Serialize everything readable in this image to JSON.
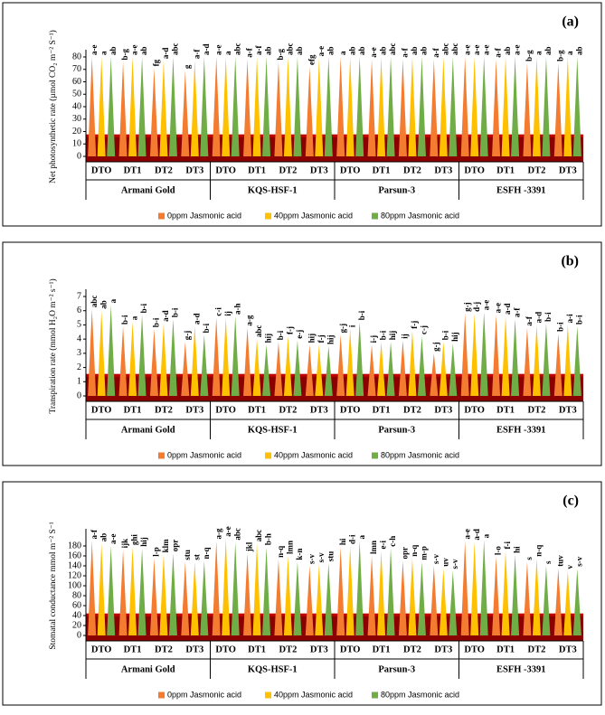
{
  "chart_data": [
    {
      "type": "bar",
      "panel": "(a)",
      "y_label": "Net photosynthetic rate (µmol CO₂ m⁻² S⁻¹)",
      "groups": [
        "Armani Gold",
        "KQS-HSF-1",
        "Parsun-3",
        "ESFH -3391"
      ],
      "categories": [
        "DTO",
        "DT1",
        "DT2",
        "DT3",
        "DTO",
        "DT1",
        "DT2",
        "DT3",
        "DTO",
        "DT1",
        "DT2",
        "DT3",
        "DTO",
        "DT1",
        "DT2",
        "DT3"
      ],
      "ylim": [
        0,
        80
      ],
      "yticks": [
        0,
        10,
        20,
        30,
        40,
        50,
        60,
        70,
        80
      ],
      "series": [
        {
          "name": "0ppm Jasmonic acid",
          "color": "#f47c30",
          "values": [
            80,
            76,
            71,
            69,
            80,
            78,
            76,
            72,
            80,
            78,
            78,
            78,
            80,
            78,
            75,
            75
          ],
          "labels": [
            "a-e",
            "b-g",
            "fg",
            "g",
            "a-e",
            "a-f",
            "b-g",
            "efg",
            "a",
            "a-e",
            "a-f",
            "a-f",
            "a-e",
            "a-f",
            "b-g",
            "b-g"
          ]
        },
        {
          "name": "40ppm Jasmonic acid",
          "color": "#ffc000",
          "values": [
            80,
            80,
            77,
            77,
            80,
            80,
            80,
            79,
            80,
            80,
            80,
            80,
            80,
            80,
            80,
            80
          ],
          "labels": [
            "a",
            "a-e",
            "a-d",
            "a-f",
            "a",
            "a-f",
            "abc",
            "a-e",
            "ab",
            "ab",
            "ab",
            "abc",
            "a-e",
            "ab",
            "a",
            "a"
          ]
        },
        {
          "name": "80ppm Jasmonic acid",
          "color": "#70ad47",
          "values": [
            80,
            80,
            80,
            80,
            80,
            80,
            80,
            80,
            80,
            80,
            80,
            80,
            80,
            80,
            80,
            80
          ],
          "labels": [
            "ab",
            "ab",
            "abc",
            "a-d",
            "abc",
            "ab",
            "ab",
            "ab",
            "ab",
            "abc",
            "ab",
            "abc",
            "a-e",
            "a-e",
            "ab",
            "ab"
          ]
        }
      ]
    },
    {
      "type": "bar",
      "panel": "(b)",
      "y_label": "Transpiration rate (mmol H₂O m⁻² s⁻¹)",
      "groups": [
        "Armani Gold",
        "KQS-HSF-1",
        "Parsun-3",
        "ESFH -3391"
      ],
      "categories": [
        "DTO",
        "DT1",
        "DT2",
        "DT3",
        "DTO",
        "DT1",
        "DT2",
        "DT3",
        "DTO",
        "DT1",
        "DT2",
        "DT3",
        "DTO",
        "DT1",
        "DT2",
        "DT3"
      ],
      "ylim": [
        0,
        7
      ],
      "yticks": [
        0,
        1,
        2,
        3,
        4,
        5,
        6,
        7
      ],
      "series": [
        {
          "name": "0ppm Jasmonic acid",
          "color": "#f47c30",
          "values": [
            6.1,
            4.9,
            4.7,
            3.8,
            5.5,
            4.8,
            3.8,
            3.6,
            4.3,
            3.6,
            3.9,
            3.0,
            5.8,
            5.7,
            4.8,
            4.4
          ],
          "labels": [
            "abc",
            "b-i",
            "b-i",
            "g-j",
            "c-i",
            "a-g",
            "b-i",
            "hij",
            "g-j",
            "i-j",
            "ij",
            "g-j",
            "g-j",
            "a-e",
            "a-f",
            "b-i"
          ]
        },
        {
          "name": "40ppm Jasmonic acid",
          "color": "#ffc000",
          "values": [
            6.0,
            5.2,
            5.1,
            4.9,
            5.5,
            4.0,
            4.2,
            3.6,
            4.7,
            3.8,
            4.6,
            3.8,
            5.8,
            5.6,
            5.0,
            5.0
          ],
          "labels": [
            "ab",
            "a",
            "a-d",
            "a-d",
            "ij",
            "abc",
            "f-j",
            "f-j",
            "i",
            "b-i",
            "f-j",
            "b-i",
            "d-j",
            "a-d",
            "a-d",
            "a-i"
          ]
        },
        {
          "name": "80ppm Jasmonic acid",
          "color": "#70ad47",
          "values": [
            6.4,
            5.7,
            5.4,
            4.3,
            5.6,
            3.6,
            3.9,
            3.5,
            5.2,
            3.8,
            4.2,
            3.7,
            5.9,
            5.4,
            5.1,
            4.9
          ],
          "labels": [
            "a",
            "b-i",
            "b-i",
            "b-i",
            "a-h",
            "hij",
            "e-j",
            "hij",
            "b-i",
            "hij",
            "c-j",
            "hij",
            "a-e",
            "a-f",
            "b-i",
            "b-i"
          ]
        }
      ]
    },
    {
      "type": "bar",
      "panel": "(c)",
      "y_label": "Stomatal conductance  mmol m⁻² S⁻¹",
      "groups": [
        "Armani Gold",
        "KQS-HSF-1",
        "Parsun-3",
        "ESFH -3391"
      ],
      "categories": [
        "DTO",
        "DT1",
        "DT2",
        "DT3",
        "DTO",
        "DT1",
        "DT2",
        "DT3",
        "DTO",
        "DT1",
        "DT2",
        "DT3",
        "DTO",
        "DT1",
        "DT2",
        "DT3"
      ],
      "ylim": [
        0,
        200
      ],
      "yticks": [
        0,
        20,
        40,
        60,
        80,
        100,
        120,
        140,
        160,
        180
      ],
      "series": [
        {
          "name": "0ppm Jasmonic acid",
          "color": "#f47c30",
          "values": [
            190,
            172,
            155,
            148,
            190,
            165,
            153,
            140,
            178,
            160,
            150,
            140,
            190,
            158,
            148,
            135
          ],
          "labels": [
            "a-f",
            "ijk",
            "l-p",
            "stu",
            "a-g",
            "jkl",
            "n-q",
            "s-v",
            "hi",
            "lmn",
            "opr",
            "s-v",
            "a-e",
            "l-o",
            "s",
            "tuv"
          ]
        },
        {
          "name": "40ppm Jasmonic acid",
          "color": "#ffc000",
          "values": [
            185,
            178,
            163,
            148,
            195,
            185,
            160,
            143,
            180,
            170,
            155,
            135,
            188,
            170,
            155,
            130
          ],
          "labels": [
            "ab",
            "ghi",
            "klm",
            "st",
            "a-e",
            "abc",
            "lmn",
            "s-v",
            "d-i",
            "e-i",
            "n-q",
            "uv",
            "a-d",
            "f-i",
            "n-q",
            "v"
          ]
        },
        {
          "name": "80ppm Jasmonic acid",
          "color": "#70ad47",
          "values": [
            180,
            175,
            165,
            150,
            188,
            178,
            148,
            145,
            190,
            175,
            148,
            130,
            192,
            162,
            140,
            135
          ],
          "labels": [
            "a-e",
            "hij",
            "opr",
            "n-q",
            "abc",
            "b-h",
            "k-n",
            "stu",
            "a",
            "c-h",
            "m-p",
            "s-v",
            "a",
            "hi",
            "s",
            "s-v"
          ]
        }
      ]
    }
  ]
}
